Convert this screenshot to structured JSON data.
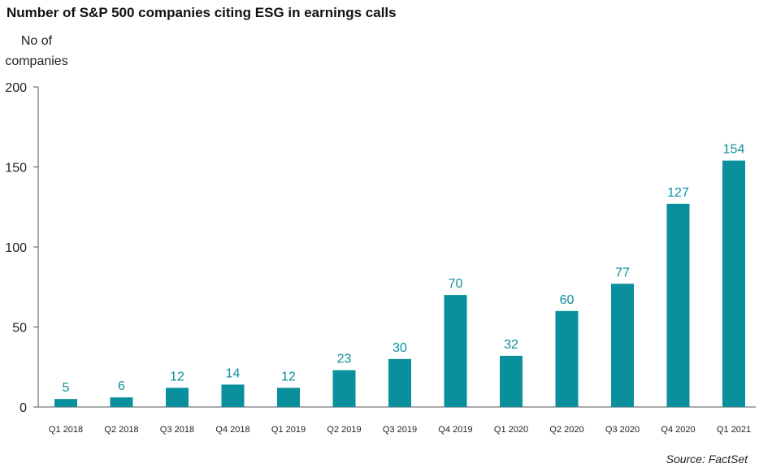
{
  "chart_data": {
    "type": "bar",
    "title": "Number of S&P 500 companies citing ESG in earnings calls",
    "ylabel": "No of companies",
    "xlabel": "",
    "categories": [
      "Q1 2018",
      "Q2 2018",
      "Q3 2018",
      "Q4 2018",
      "Q1 2019",
      "Q2 2019",
      "Q3 2019",
      "Q4 2019",
      "Q1 2020",
      "Q2 2020",
      "Q3 2020",
      "Q4 2020",
      "Q1 2021"
    ],
    "values": [
      5,
      6,
      12,
      14,
      12,
      23,
      30,
      70,
      32,
      60,
      77,
      127,
      154
    ],
    "ylim": [
      0,
      200
    ],
    "yticks": [
      0,
      50,
      100,
      150,
      200
    ],
    "grid": false,
    "legend": "none",
    "bar_color": "#0a8f9c",
    "label_color": "#0a8f9c"
  },
  "source": "Source: FactSet"
}
